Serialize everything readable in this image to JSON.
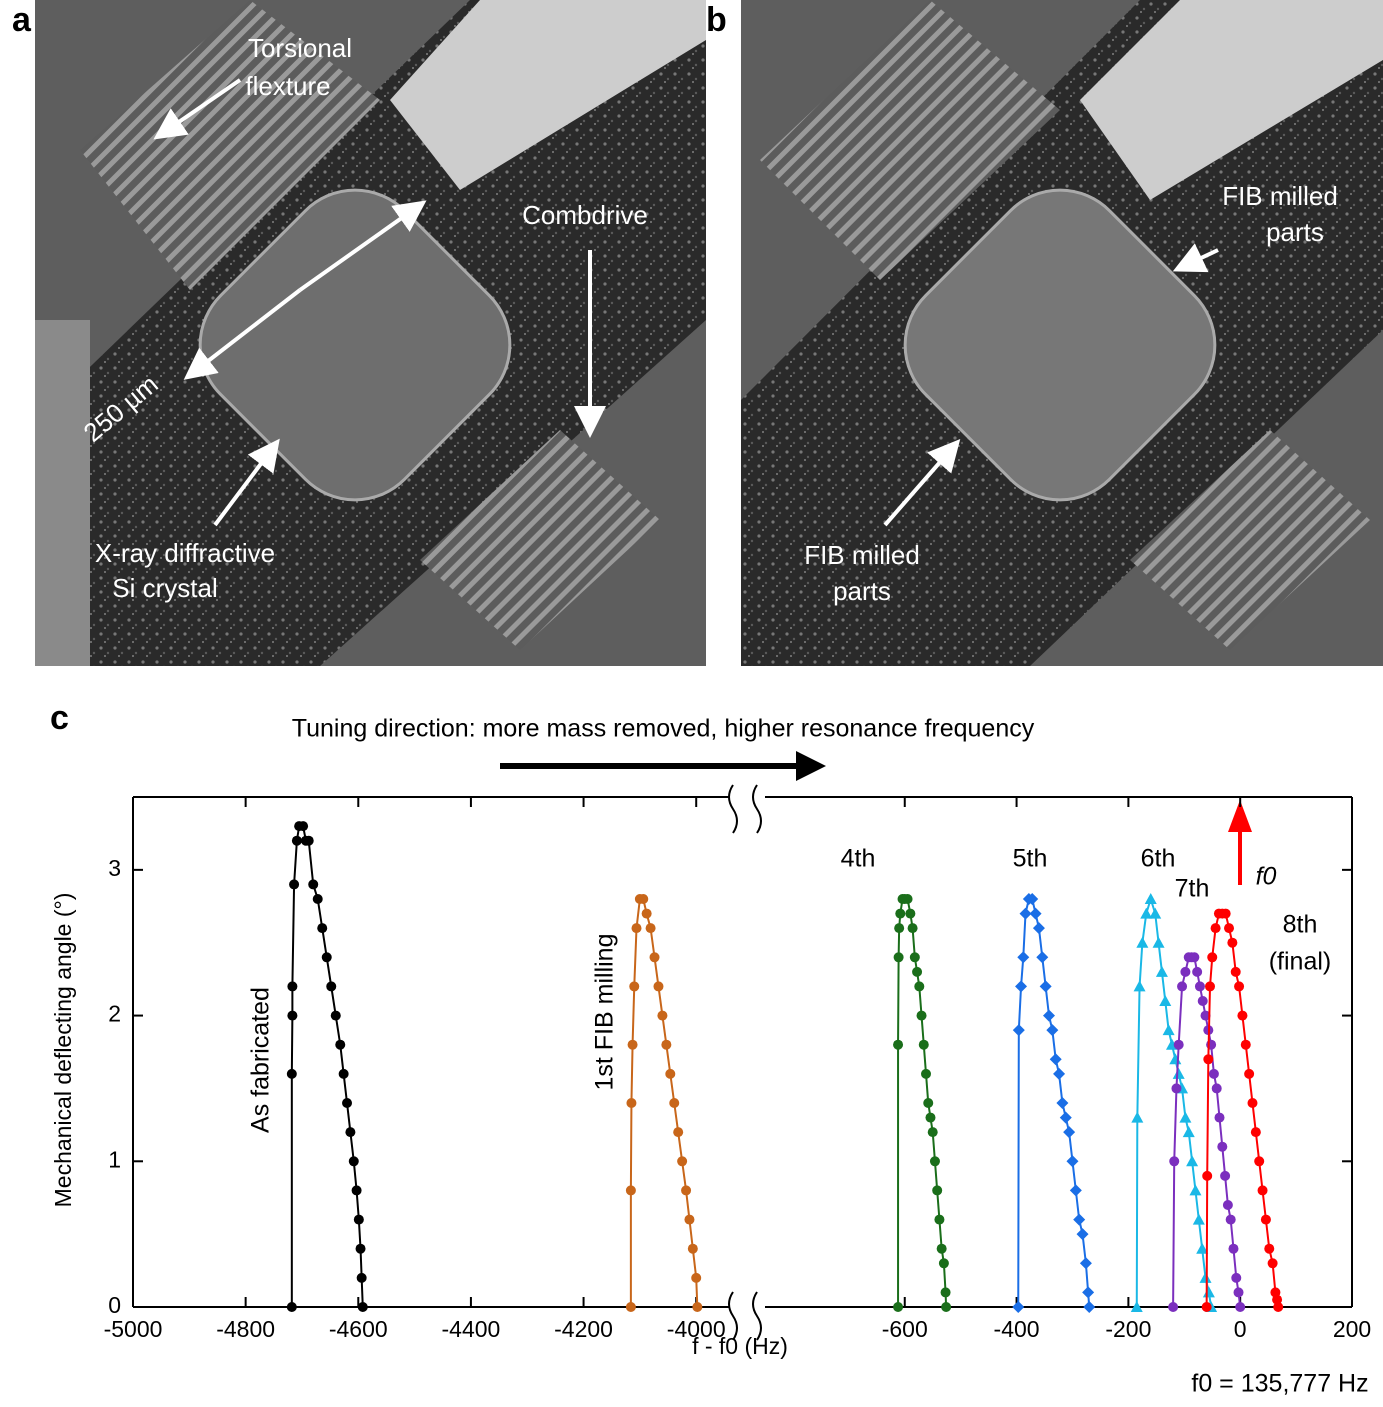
{
  "figure": {
    "panels": [
      {
        "letter": "a",
        "annotations": [
          "Torsional",
          "flexture",
          "Combdrive",
          "250 µm",
          "X-ray diffractive",
          "Si crystal"
        ]
      },
      {
        "letter": "b",
        "annotations": [
          "FIB milled",
          "parts",
          "FIB milled",
          "parts"
        ]
      },
      {
        "letter": "c"
      }
    ]
  },
  "chart_data": [
    {
      "type": "line",
      "title": "Tuning direction: more mass removed, higher resonance frequency",
      "y_label": "Mechanical deflecting angle (°)",
      "ylim": [
        0,
        3.5
      ],
      "yticks": [
        0,
        1,
        2,
        3
      ],
      "xlim": [
        -5000,
        -3940
      ],
      "xticks": [
        -5000,
        -4800,
        -4600,
        -4400,
        -4200,
        -4000
      ],
      "series": [
        {
          "name": "As fabricated",
          "color": "#000000",
          "marker": "circle",
          "x": [
            -4718,
            -4718,
            -4717,
            -4717,
            -4714,
            -4709,
            -4705,
            -4698,
            -4693,
            -4688,
            -4680,
            -4672,
            -4664,
            -4656,
            -4648,
            -4640,
            -4632,
            -4626,
            -4620,
            -4614,
            -4608,
            -4603,
            -4599,
            -4596,
            -4594,
            -4592
          ],
          "values": [
            0,
            1.6,
            2.0,
            2.2,
            2.9,
            3.2,
            3.3,
            3.3,
            3.2,
            3.2,
            2.9,
            2.8,
            2.6,
            2.4,
            2.2,
            2.0,
            1.8,
            1.6,
            1.4,
            1.2,
            1.0,
            0.8,
            0.6,
            0.4,
            0.2,
            0
          ]
        },
        {
          "name": "1st FIB milling",
          "color": "#c8661a",
          "marker": "circle",
          "x": [
            -4116,
            -4116,
            -4115,
            -4113,
            -4110,
            -4106,
            -4100,
            -4094,
            -4088,
            -4081,
            -4074,
            -4067,
            -4060,
            -4053,
            -4046,
            -4039,
            -4032,
            -4025,
            -4018,
            -4012,
            -4006,
            -4000,
            -3998
          ],
          "values": [
            0,
            0.8,
            1.4,
            1.8,
            2.2,
            2.6,
            2.8,
            2.8,
            2.7,
            2.6,
            2.4,
            2.2,
            2.0,
            1.8,
            1.6,
            1.4,
            1.2,
            1.0,
            0.8,
            0.6,
            0.4,
            0.2,
            0
          ]
        }
      ]
    },
    {
      "type": "line",
      "x_label": "f - f0 (Hz)",
      "ylim": [
        0,
        3.5
      ],
      "xlim": [
        -850,
        200
      ],
      "xticks": [
        -600,
        -400,
        -200,
        0,
        200
      ],
      "annotations": [
        "(final)",
        "f0",
        "f0 = 135,777 Hz"
      ],
      "series": [
        {
          "name": "4th",
          "color": "#1a6e1a",
          "marker": "circle",
          "x": [
            -612,
            -612,
            -611,
            -610,
            -608,
            -604,
            -600,
            -595,
            -590,
            -586,
            -582,
            -578,
            -574,
            -570,
            -566,
            -562,
            -558,
            -554,
            -550,
            -546,
            -542,
            -538,
            -534,
            -530,
            -527,
            -526
          ],
          "values": [
            0,
            1.8,
            2.4,
            2.6,
            2.7,
            2.8,
            2.8,
            2.8,
            2.7,
            2.6,
            2.4,
            2.3,
            2.2,
            2.0,
            1.8,
            1.6,
            1.4,
            1.3,
            1.2,
            1.0,
            0.8,
            0.6,
            0.4,
            0.3,
            0.1,
            0
          ]
        },
        {
          "name": "5th",
          "color": "#1a6ee6",
          "marker": "diamond",
          "x": [
            -397,
            -396,
            -392,
            -388,
            -384,
            -378,
            -372,
            -366,
            -360,
            -354,
            -348,
            -342,
            -336,
            -330,
            -324,
            -318,
            -312,
            -306,
            -300,
            -294,
            -288,
            -282,
            -276,
            -272,
            -270
          ],
          "values": [
            0,
            1.9,
            2.2,
            2.4,
            2.7,
            2.8,
            2.8,
            2.7,
            2.6,
            2.4,
            2.2,
            2.0,
            1.9,
            1.7,
            1.6,
            1.4,
            1.3,
            1.2,
            1.0,
            0.8,
            0.6,
            0.5,
            0.3,
            0.1,
            0
          ]
        },
        {
          "name": "6th",
          "color": "#1ab8e6",
          "marker": "triangle",
          "x": [
            -185,
            -184,
            -180,
            -175,
            -168,
            -160,
            -152,
            -146,
            -140,
            -134,
            -128,
            -122,
            -116,
            -110,
            -104,
            -98,
            -92,
            -86,
            -80,
            -74,
            -68,
            -62,
            -56,
            -52
          ],
          "values": [
            0,
            1.3,
            2.2,
            2.5,
            2.7,
            2.8,
            2.7,
            2.5,
            2.3,
            2.1,
            1.9,
            1.8,
            1.7,
            1.6,
            1.5,
            1.3,
            1.2,
            1.0,
            0.8,
            0.6,
            0.4,
            0.2,
            0.1,
            0
          ]
        },
        {
          "name": "7th",
          "color": "#7b2fbe",
          "marker": "circle",
          "x": [
            -120,
            -118,
            -114,
            -110,
            -104,
            -98,
            -92,
            -87,
            -82,
            -77,
            -72,
            -67,
            -62,
            -57,
            -52,
            -47,
            -42,
            -37,
            -32,
            -27,
            -22,
            -17,
            -12,
            -7,
            -3,
            0
          ],
          "values": [
            0,
            1.0,
            1.5,
            1.8,
            2.2,
            2.3,
            2.4,
            2.4,
            2.4,
            2.3,
            2.2,
            2.1,
            2.0,
            1.9,
            1.8,
            1.6,
            1.5,
            1.3,
            1.1,
            0.9,
            0.7,
            0.6,
            0.4,
            0.2,
            0.1,
            0
          ]
        },
        {
          "name": "8th",
          "color": "#ff0000",
          "marker": "circle",
          "x": [
            -60,
            -59,
            -57,
            -54,
            -50,
            -44,
            -38,
            -32,
            -26,
            -20,
            -14,
            -8,
            -2,
            4,
            10,
            16,
            22,
            28,
            34,
            40,
            46,
            52,
            58,
            63,
            66,
            68
          ],
          "values": [
            0,
            0.9,
            1.7,
            2.2,
            2.4,
            2.6,
            2.7,
            2.7,
            2.7,
            2.6,
            2.5,
            2.3,
            2.2,
            2.0,
            1.8,
            1.6,
            1.4,
            1.2,
            1.0,
            0.8,
            0.6,
            0.4,
            0.3,
            0.1,
            0.05,
            0
          ]
        }
      ]
    }
  ]
}
